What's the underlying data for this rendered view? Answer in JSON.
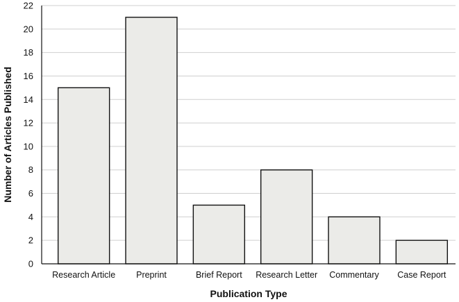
{
  "chart_data": {
    "type": "bar",
    "categories": [
      "Research Article",
      "Preprint",
      "Brief Report",
      "Research Letter",
      "Commentary",
      "Case Report"
    ],
    "values": [
      15,
      21,
      5,
      8,
      4,
      2
    ],
    "title": "",
    "xlabel": "Publication Type",
    "ylabel": "Number of Articles Published",
    "ylim": [
      0,
      22
    ],
    "yticks": [
      0,
      2,
      4,
      6,
      8,
      10,
      12,
      14,
      16,
      18,
      20,
      22
    ],
    "grid": "horizontal",
    "legend": "none",
    "colors": {
      "bar_fill": "#ebebe8",
      "bar_stroke": "#111111",
      "grid": "#cfcfcf"
    }
  }
}
